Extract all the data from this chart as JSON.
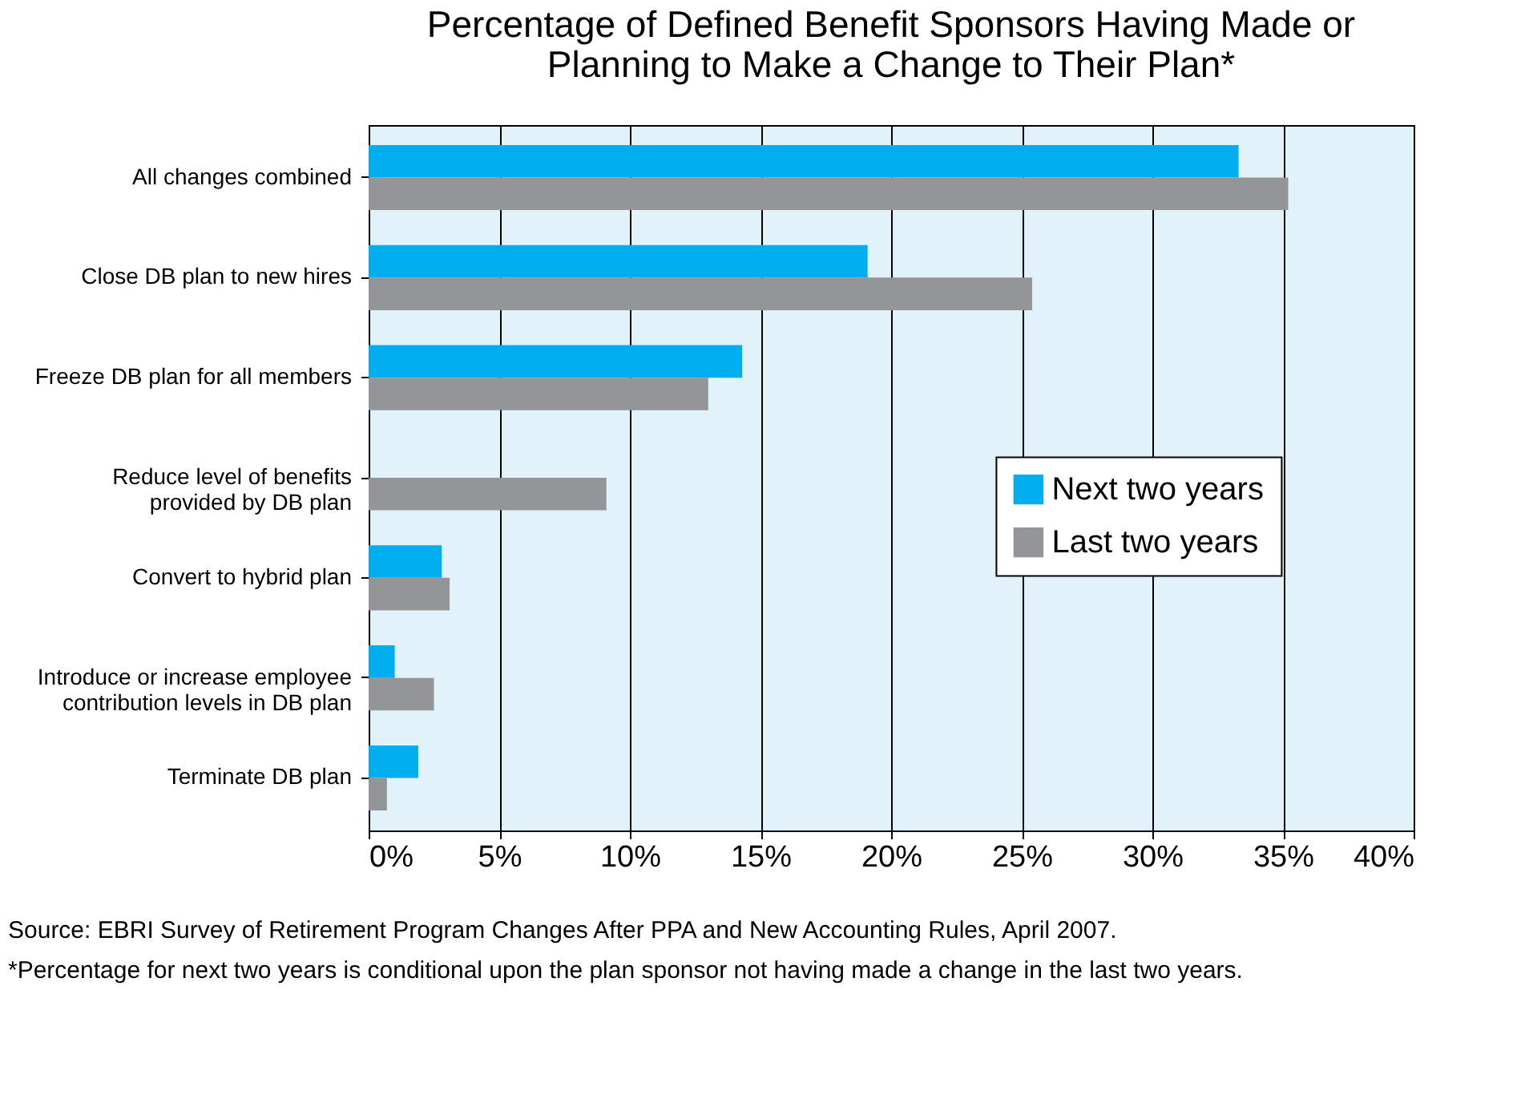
{
  "chart_data": {
    "type": "bar",
    "orientation": "horizontal",
    "title": "Percentage of Defined Benefit Sponsors Having  Made or Planning to Make a Change to Their Plan*",
    "categories": [
      "All changes combined",
      "Close DB plan to new hires",
      "Freeze DB plan for all members",
      "Reduce level of benefits provided by DB plan",
      "Convert to hybrid plan",
      "Introduce or increase employee contribution levels in DB plan",
      "Terminate DB plan"
    ],
    "series": [
      {
        "name": "Next two years",
        "color": "#00aeef",
        "values": [
          33.3,
          19.1,
          14.3,
          null,
          2.8,
          1.0,
          1.9
        ]
      },
      {
        "name": "Last two years",
        "color": "#939598",
        "values": [
          35.2,
          25.4,
          13.0,
          9.1,
          3.1,
          2.5,
          0.7
        ]
      }
    ],
    "xlim": [
      0,
      40
    ],
    "xticks": [
      {
        "value": 0,
        "label": "0%"
      },
      {
        "value": 5,
        "label": "5%"
      },
      {
        "value": 10,
        "label": "10%"
      },
      {
        "value": 15,
        "label": "15%"
      },
      {
        "value": 20,
        "label": "20%"
      },
      {
        "value": 25,
        "label": "25%"
      },
      {
        "value": 30,
        "label": "30%"
      },
      {
        "value": 35,
        "label": "35%"
      },
      {
        "value": 40,
        "label": "40%"
      }
    ],
    "grid": "x",
    "legend": "right",
    "annotations": [
      "Source: EBRI Survey of Retirement Program Changes  After PPA and New Accounting Rules, April 2007.",
      "*Percentage for next two years is conditional upon the plan sponsor not having made a change in the last two years."
    ]
  }
}
